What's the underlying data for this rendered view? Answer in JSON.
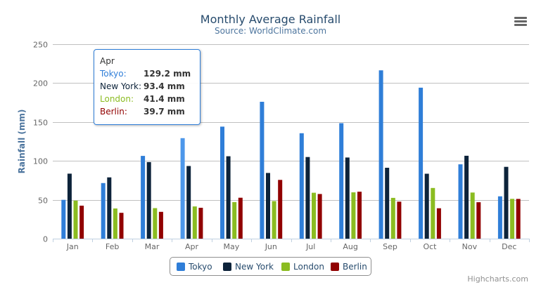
{
  "title": "Monthly Average Rainfall",
  "subtitle": "Source: WorldClimate.com",
  "credits": "Highcharts.com",
  "chart_data": {
    "type": "bar",
    "title": "Monthly Average Rainfall",
    "subtitle": "Source: WorldClimate.com",
    "xlabel": "",
    "ylabel": "Rainfall (mm)",
    "ylim": [
      0,
      250
    ],
    "yticks": [
      "0",
      "50",
      "100",
      "150",
      "200",
      "250"
    ],
    "grid": true,
    "legend": "bottom-center",
    "categories": [
      "Jan",
      "Feb",
      "Mar",
      "Apr",
      "May",
      "Jun",
      "Jul",
      "Aug",
      "Sep",
      "Oct",
      "Nov",
      "Dec"
    ],
    "series": [
      {
        "name": "Tokyo",
        "color": "#2f7ed8",
        "values": [
          49.9,
          71.5,
          106.4,
          129.2,
          144.0,
          176.0,
          135.6,
          148.5,
          216.4,
          194.1,
          95.6,
          54.4
        ]
      },
      {
        "name": "New York",
        "color": "#0d233a",
        "values": [
          83.6,
          78.8,
          98.5,
          93.4,
          106.0,
          84.5,
          105.0,
          104.3,
          91.2,
          83.5,
          106.6,
          92.3
        ]
      },
      {
        "name": "London",
        "color": "#8bbc21",
        "values": [
          48.9,
          38.8,
          39.3,
          41.4,
          47.0,
          48.3,
          59.0,
          59.6,
          52.4,
          65.2,
          59.3,
          51.2
        ]
      },
      {
        "name": "Berlin",
        "color": "#910000",
        "values": [
          42.4,
          33.2,
          34.5,
          39.7,
          52.6,
          75.5,
          57.4,
          60.4,
          47.6,
          39.1,
          46.8,
          51.1
        ]
      }
    ]
  },
  "tooltip": {
    "header": "Apr",
    "rows": [
      {
        "name": "Tokyo:",
        "value": "129.2 mm",
        "color": "#2f7ed8"
      },
      {
        "name": "New York:",
        "value": "93.4 mm",
        "color": "#0d233a"
      },
      {
        "name": "London:",
        "value": "41.4 mm",
        "color": "#8bbc21"
      },
      {
        "name": "Berlin:",
        "value": "39.7 mm",
        "color": "#910000"
      }
    ]
  },
  "menu_icon": "hamburger-menu-icon"
}
